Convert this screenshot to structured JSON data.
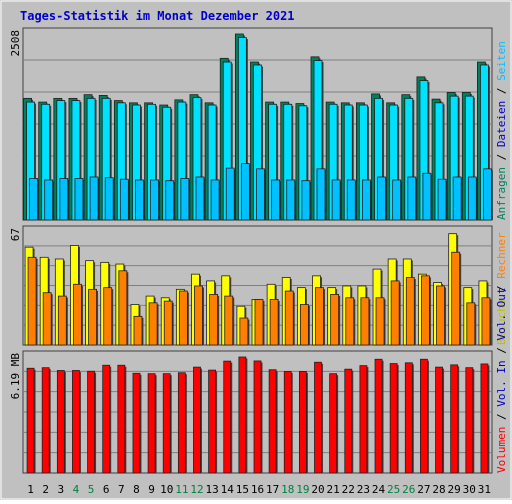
{
  "chart_data": {
    "type": "bar",
    "title": "Tages-Statistik im Monat Dezember 2021",
    "days": [
      "1",
      "2",
      "3",
      "4",
      "5",
      "6",
      "7",
      "8",
      "9",
      "10",
      "11",
      "12",
      "13",
      "14",
      "15",
      "16",
      "17",
      "18",
      "19",
      "20",
      "21",
      "22",
      "23",
      "24",
      "25",
      "26",
      "27",
      "28",
      "29",
      "30",
      "31"
    ],
    "weekend_days": [
      "4",
      "5",
      "11",
      "12",
      "18",
      "19",
      "25",
      "26"
    ],
    "colors": {
      "title": "#0000cc",
      "background": "#c0c0c0",
      "grid": "#808080",
      "anfragen": "#00805c",
      "dateien": "#00e0ff",
      "seiten": "#00c0ff",
      "besuche": "#ffff00",
      "rechner": "#ff8000",
      "volumen": "#ff0000",
      "weekend_label": "#008040",
      "weekday_label": "#000000"
    },
    "panels": [
      {
        "id": "requests",
        "max_label": "2508",
        "ymax": 2508,
        "legend": [
          {
            "text": "Anfragen",
            "color": "#00805c"
          },
          {
            "text": " / ",
            "color": "#000000"
          },
          {
            "text": "Dateien",
            "color": "#0000c0"
          },
          {
            "text": " / ",
            "color": "#000000"
          },
          {
            "text": "Seiten",
            "color": "#00c0ff"
          }
        ],
        "series": [
          {
            "name": "Anfragen",
            "color": "#00805c",
            "values": [
              1640,
              1590,
              1640,
              1640,
              1690,
              1680,
              1610,
              1580,
              1580,
              1550,
              1620,
              1690,
              1580,
              2180,
              2508,
              2130,
              1590,
              1590,
              1570,
              2200,
              1590,
              1580,
              1580,
              1700,
              1580,
              1690,
              1930,
              1630,
              1720,
              1720,
              2130
            ]
          },
          {
            "name": "Dateien",
            "color": "#00e0ff",
            "values": [
              1590,
              1560,
              1610,
              1610,
              1640,
              1640,
              1580,
              1550,
              1560,
              1520,
              1590,
              1650,
              1550,
              2130,
              2460,
              2090,
              1560,
              1560,
              1540,
              2150,
              1560,
              1550,
              1550,
              1640,
              1550,
              1640,
              1880,
              1580,
              1670,
              1670,
              2090
            ]
          },
          {
            "name": "Seiten",
            "color": "#00c0ff",
            "values": [
              560,
              540,
              560,
              560,
              580,
              570,
              550,
              540,
              540,
              530,
              560,
              580,
              540,
              700,
              760,
              690,
              540,
              540,
              530,
              690,
              540,
              540,
              540,
              580,
              540,
              580,
              630,
              550,
              580,
              580,
              690
            ]
          }
        ]
      },
      {
        "id": "visits",
        "max_label": "67",
        "ymax": 67,
        "legend": [
          {
            "text": "Besuche",
            "color": "#c0c000"
          },
          {
            "text": " / ",
            "color": "#000000"
          },
          {
            "text": "Rechner",
            "color": "#ff8000"
          }
        ],
        "series": [
          {
            "name": "Besuche",
            "color": "#ffff00",
            "values": [
              58,
              52,
              51,
              59,
              50,
              49,
              48,
              24,
              29,
              28,
              33,
              42,
              38,
              41,
              23,
              27,
              36,
              40,
              34,
              41,
              34,
              35,
              35,
              45,
              51,
              51,
              42,
              37,
              66,
              34,
              38
            ]
          },
          {
            "name": "Rechner",
            "color": "#ff8000",
            "values": [
              52,
              31,
              29,
              36,
              33,
              34,
              44,
              17,
              25,
              26,
              32,
              35,
              30,
              29,
              16,
              27,
              27,
              32,
              24,
              34,
              30,
              28,
              28,
              28,
              38,
              40,
              41,
              35,
              55,
              25,
              28
            ]
          }
        ]
      },
      {
        "id": "volume",
        "max_label": "6.19 MB",
        "ymax": 6.19,
        "legend": [
          {
            "text": "Volumen",
            "color": "#ff0000"
          },
          {
            "text": " / ",
            "color": "#000000"
          },
          {
            "text": "Vol. In",
            "color": "#0000c0"
          },
          {
            "text": " / ",
            "color": "#000000"
          },
          {
            "text": "Vol. Out",
            "color": "#0000c0"
          }
        ],
        "series": [
          {
            "name": "Volumen",
            "color": "#ff0000",
            "values": [
              5.59,
              5.62,
              5.47,
              5.47,
              5.43,
              5.75,
              5.75,
              5.32,
              5.3,
              5.3,
              5.35,
              5.65,
              5.49,
              5.97,
              6.19,
              5.98,
              5.51,
              5.42,
              5.42,
              5.91,
              5.3,
              5.54,
              5.73,
              6.07,
              5.84,
              5.88,
              6.07,
              5.65,
              5.77,
              5.62,
              5.82
            ]
          }
        ]
      }
    ]
  }
}
